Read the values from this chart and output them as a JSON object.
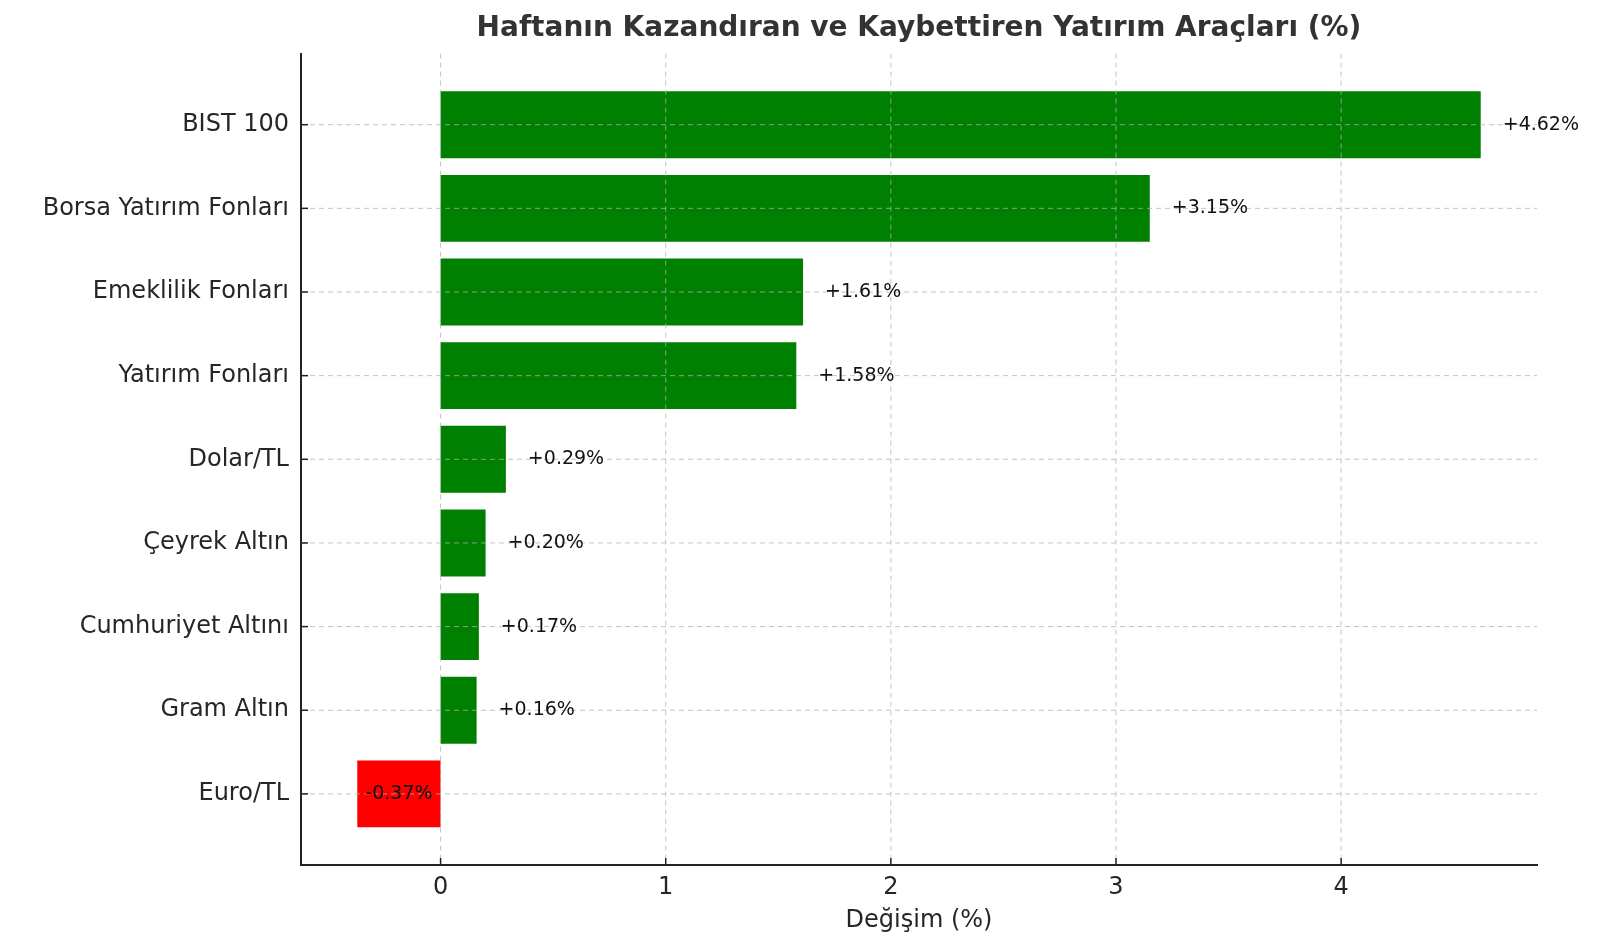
{
  "chart_data": {
    "type": "bar",
    "orientation": "horizontal",
    "title": "Haftanın Kazandıran ve Kaybettiren Yatırım Araçları (%)",
    "xlabel": "Değişim (%)",
    "categories": [
      "BIST 100",
      "Borsa Yatırım Fonları",
      "Emeklilik Fonları",
      "Yatırım Fonları",
      "Dolar/TL",
      "Çeyrek Altın",
      "Cumhuriyet Altını",
      "Gram Altın",
      "Euro/TL"
    ],
    "values": [
      4.62,
      3.15,
      1.61,
      1.58,
      0.29,
      0.2,
      0.17,
      0.16,
      -0.37
    ],
    "colors": [
      "#008000",
      "#008000",
      "#008000",
      "#008000",
      "#008000",
      "#008000",
      "#008000",
      "#008000",
      "#ff0000"
    ],
    "value_labels": [
      "+4.62%",
      "+3.15%",
      "+1.61%",
      "+1.58%",
      "+0.29%",
      "+0.20%",
      "+0.17%",
      "+0.16%",
      "-0.37%"
    ],
    "xlim": [
      -0.62,
      4.87
    ],
    "xticks": [
      0,
      1,
      2,
      3,
      4
    ],
    "grid": true
  }
}
